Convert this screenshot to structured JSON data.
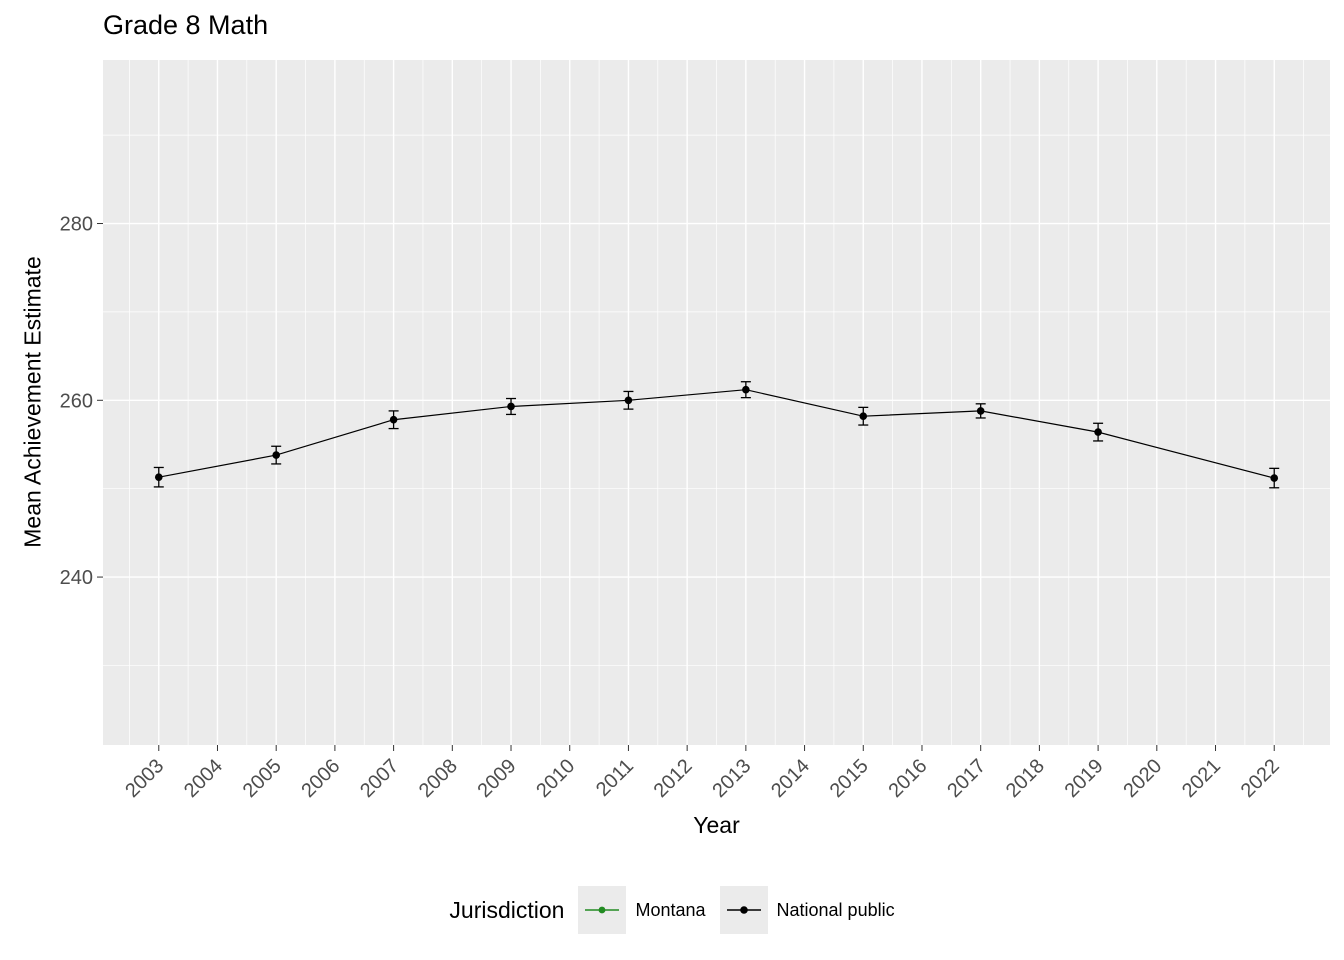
{
  "title": "Grade 8 Math",
  "axes": {
    "x": {
      "label": "Year",
      "ticks": [
        2003,
        2004,
        2005,
        2006,
        2007,
        2008,
        2009,
        2010,
        2011,
        2012,
        2013,
        2014,
        2015,
        2016,
        2017,
        2018,
        2019,
        2020,
        2021,
        2022
      ]
    },
    "y": {
      "label": "Mean Achievement Estimate",
      "ticks": [
        240,
        260,
        280
      ],
      "minor_ticks": [
        230,
        250,
        270,
        290
      ]
    }
  },
  "legend": {
    "title": "Jurisdiction",
    "items": [
      {
        "label": "Montana",
        "color": "#228B22"
      },
      {
        "label": "National public",
        "color": "#000000"
      }
    ]
  },
  "colors": {
    "panel_bg": "#ebebeb",
    "grid": "#ffffff",
    "tick_label": "#4d4d4d",
    "tick_mark": "#333333",
    "text": "#000000"
  },
  "chart_data": {
    "type": "line",
    "title": "Grade 8 Math",
    "xlabel": "Year",
    "ylabel": "Mean Achievement Estimate",
    "xlim": [
      2002.05,
      2022.95
    ],
    "ylim": [
      221,
      298.5
    ],
    "x_ticks": [
      2003,
      2004,
      2005,
      2006,
      2007,
      2008,
      2009,
      2010,
      2011,
      2012,
      2013,
      2014,
      2015,
      2016,
      2017,
      2018,
      2019,
      2020,
      2021,
      2022
    ],
    "y_ticks": [
      240,
      260,
      280
    ],
    "grid": true,
    "legend_position": "bottom",
    "series": [
      {
        "name": "Montana",
        "color": "#228B22",
        "points": []
      },
      {
        "name": "National public",
        "color": "#000000",
        "points": [
          {
            "year": 2003,
            "mean": 251.3,
            "se": 1.1
          },
          {
            "year": 2005,
            "mean": 253.8,
            "se": 1.0
          },
          {
            "year": 2007,
            "mean": 257.8,
            "se": 1.0
          },
          {
            "year": 2009,
            "mean": 259.3,
            "se": 0.9
          },
          {
            "year": 2011,
            "mean": 260.0,
            "se": 1.0
          },
          {
            "year": 2013,
            "mean": 261.2,
            "se": 0.9
          },
          {
            "year": 2015,
            "mean": 258.2,
            "se": 1.0
          },
          {
            "year": 2017,
            "mean": 258.8,
            "se": 0.8
          },
          {
            "year": 2019,
            "mean": 256.4,
            "se": 1.0
          },
          {
            "year": 2022,
            "mean": 251.2,
            "se": 1.1
          }
        ]
      }
    ]
  }
}
